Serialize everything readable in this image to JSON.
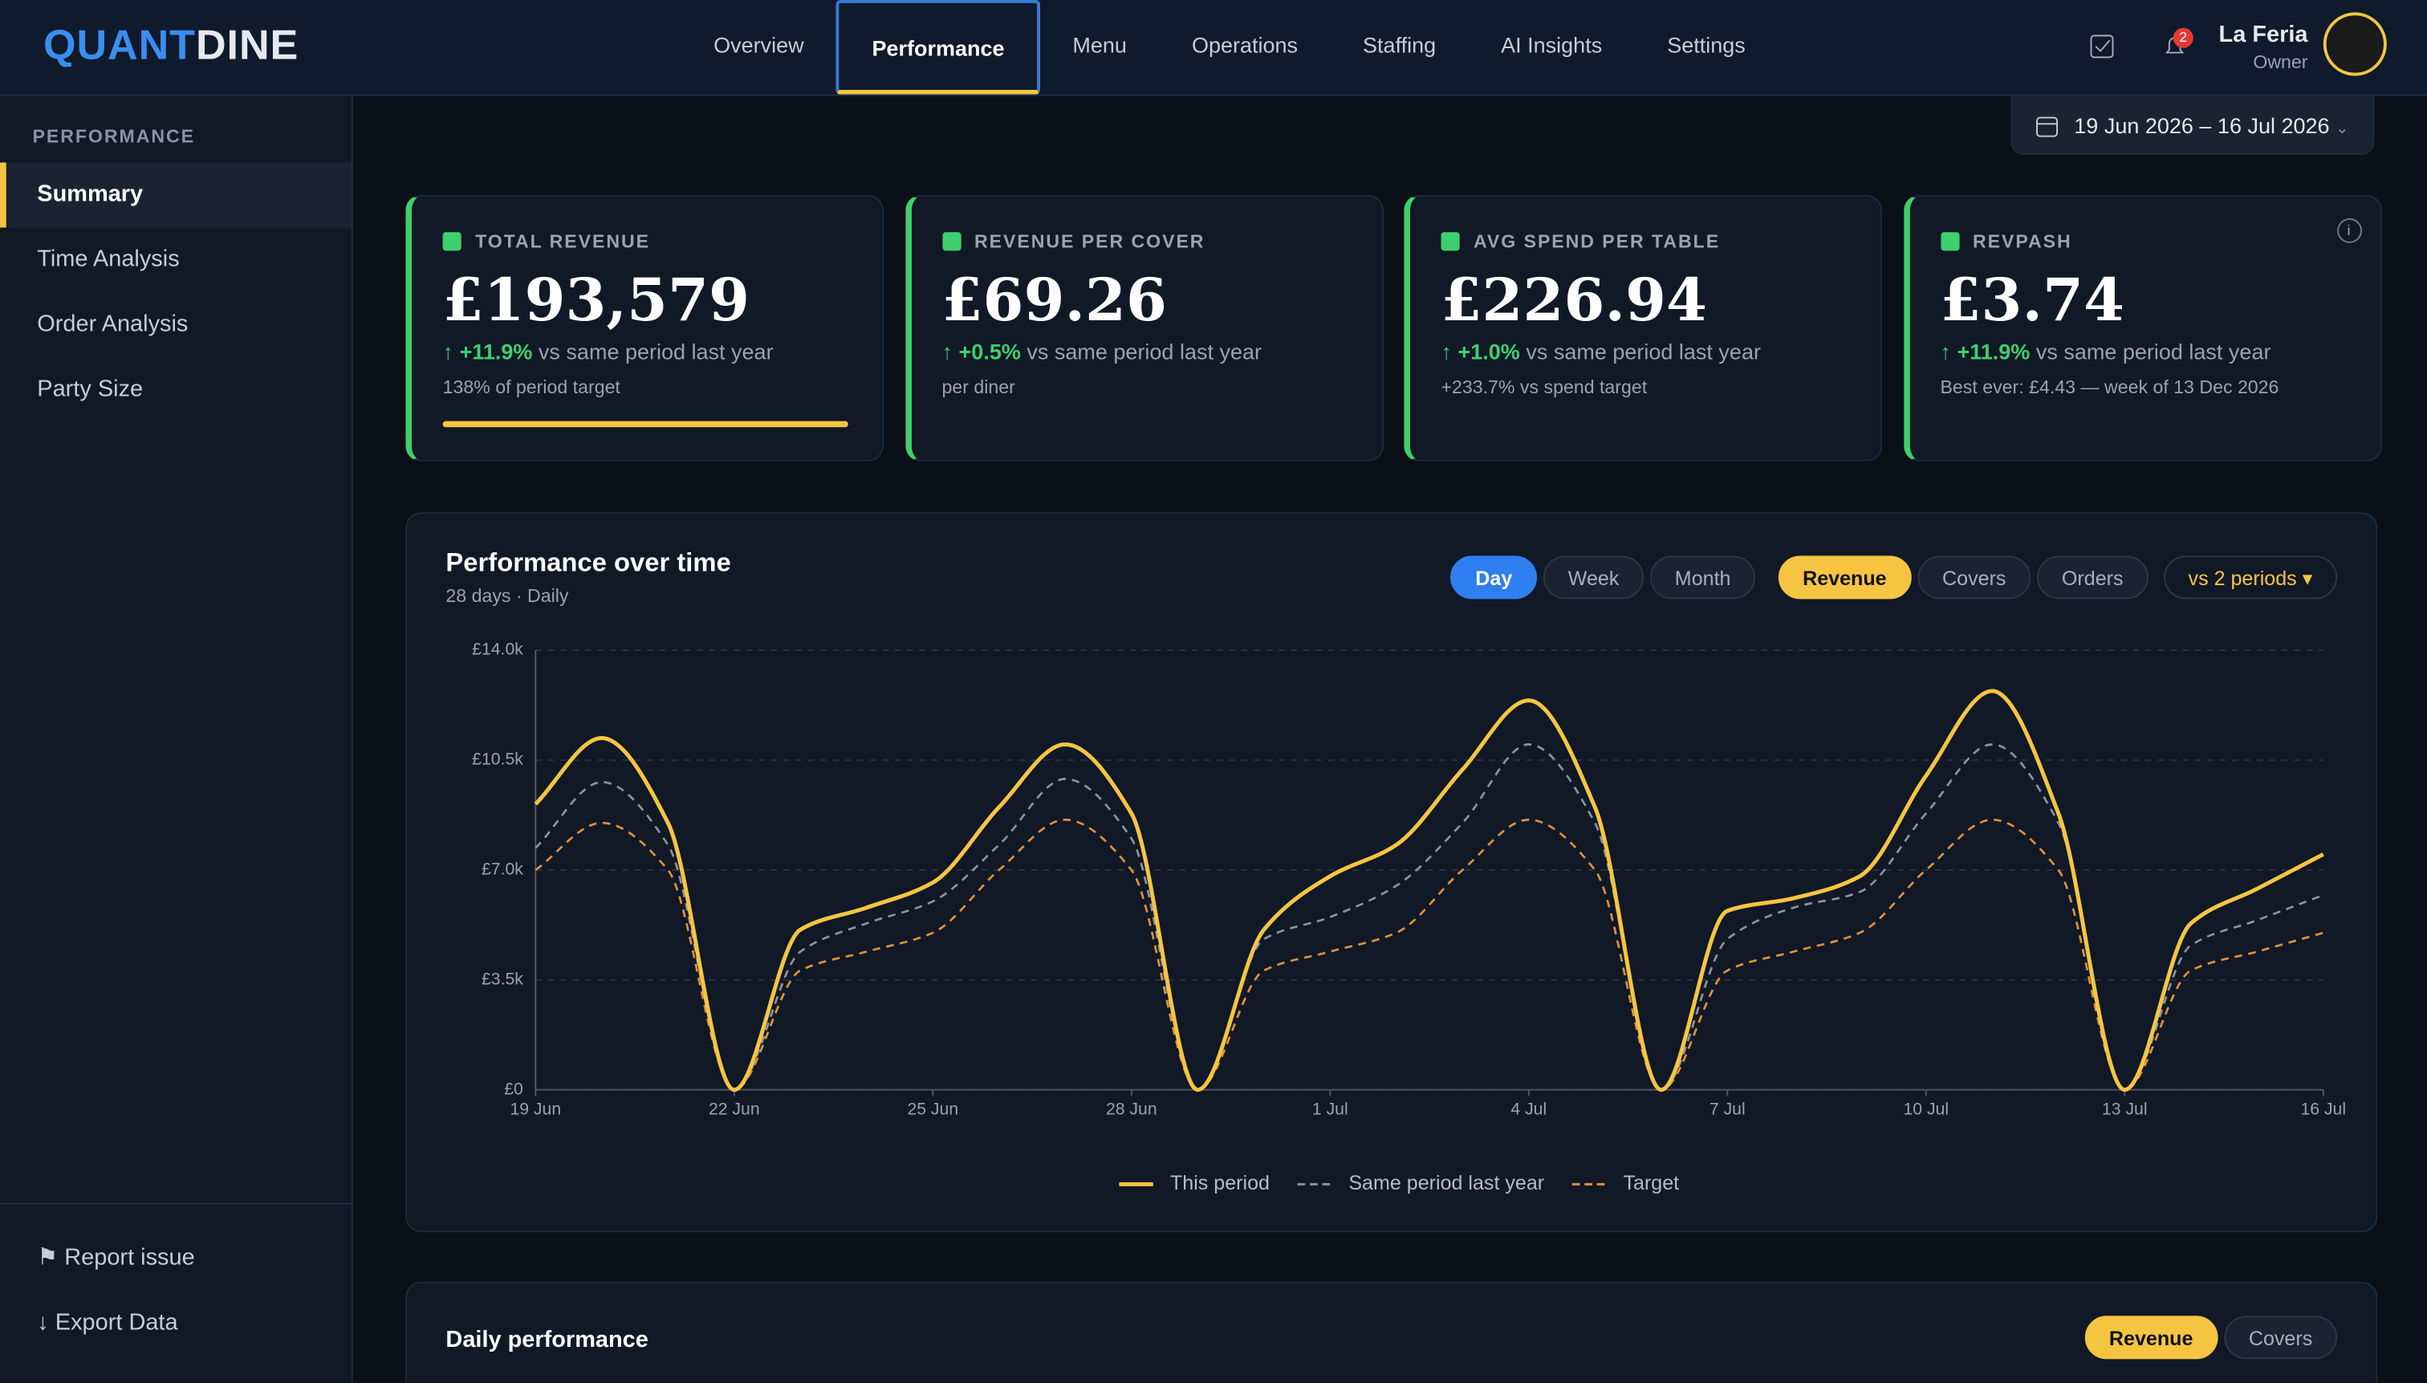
{
  "header": {
    "logo": [
      "QUANT",
      "DINE"
    ],
    "nav": [
      "Overview",
      "Performance",
      "Menu",
      "Operations",
      "Staffing",
      "AI Insights",
      "Settings"
    ],
    "active": "Performance",
    "notifications": "2",
    "user": {
      "name": "La Feria",
      "role": "Owner"
    }
  },
  "sidebar": {
    "section": "PERFORMANCE",
    "items": [
      "Summary",
      "Time Analysis",
      "Order Analysis",
      "Party Size"
    ],
    "active": "Summary",
    "footer": [
      "Report issue",
      "Export Data"
    ]
  },
  "date_range": "19 Jun 2026 – 16 Jul 2026",
  "kpis": [
    {
      "label": "TOTAL REVENUE",
      "value": "£193,579",
      "change": "↑ +11.9%",
      "change_text": "vs same period last year",
      "note": "138% of period target"
    },
    {
      "label": "REVENUE PER COVER",
      "value": "£69.26",
      "change": "↑ +0.5%",
      "change_text": "vs same period last year",
      "note": "per diner"
    },
    {
      "label": "AVG SPEND PER TABLE",
      "value": "£226.94",
      "change": "↑ +1.0%",
      "change_text": "vs same period last year",
      "note": "+233.7% vs spend target"
    },
    {
      "label": "REVPASH",
      "value": "£3.74",
      "change": "↑ +11.9%",
      "change_text": "vs same period last year",
      "note": "Best ever: £4.43 — week of 13 Dec 2026"
    }
  ],
  "chart_card": {
    "title": "Performance over time",
    "subtitle": "28 days · Daily",
    "periods": [
      "Day",
      "Week",
      "Month"
    ],
    "metrics": [
      "Revenue",
      "Covers",
      "Orders"
    ],
    "compare": "vs 2 periods ▾"
  },
  "chart_data": {
    "type": "line",
    "categories": [
      "19 Jun",
      null,
      null,
      "22 Jun",
      null,
      null,
      "25 Jun",
      null,
      null,
      "28 Jun",
      null,
      null,
      "1 Jul",
      null,
      null,
      "4 Jul",
      null,
      null,
      "7 Jul",
      null,
      null,
      "10 Jul",
      null,
      null,
      "13 Jul",
      null,
      null,
      "16 Jul"
    ],
    "series": [
      {
        "name": "This period",
        "color": "#f5c542",
        "dash": false,
        "values": [
          9100,
          11200,
          8500,
          0,
          5100,
          5800,
          6600,
          9000,
          11000,
          8800,
          0,
          5100,
          6800,
          7800,
          10200,
          12400,
          9000,
          0,
          5700,
          6100,
          6800,
          10000,
          12700,
          8800,
          0,
          5300,
          6400,
          7500
        ]
      },
      {
        "name": "Same period last year",
        "color": "#8a93a3",
        "dash": true,
        "values": [
          7700,
          9800,
          7800,
          0,
          4400,
          5300,
          6000,
          7800,
          9900,
          8000,
          0,
          4800,
          5500,
          6500,
          8500,
          11000,
          8500,
          0,
          4800,
          5800,
          6300,
          8800,
          11000,
          8500,
          0,
          4600,
          5400,
          6200
        ]
      },
      {
        "name": "Target",
        "color": "#e0913a",
        "dash": true,
        "values": [
          7000,
          8500,
          7000,
          0,
          3800,
          4400,
          5000,
          7000,
          8600,
          7000,
          0,
          3800,
          4400,
          5000,
          7000,
          8600,
          7000,
          0,
          3800,
          4400,
          5000,
          7000,
          8600,
          7000,
          0,
          3800,
          4400,
          5000
        ]
      }
    ],
    "ylim": [
      0,
      14000
    ],
    "yticks": [
      {
        "value": 0,
        "label": "£0"
      },
      {
        "value": 3500,
        "label": "£3.5k"
      },
      {
        "value": 7000,
        "label": "£7.0k"
      },
      {
        "value": 10500,
        "label": "£10.5k"
      },
      {
        "value": 14000,
        "label": "£14.0k"
      }
    ],
    "grid": true
  },
  "daily_card": {
    "title": "Daily performance",
    "metrics": [
      "Revenue",
      "Covers"
    ]
  }
}
